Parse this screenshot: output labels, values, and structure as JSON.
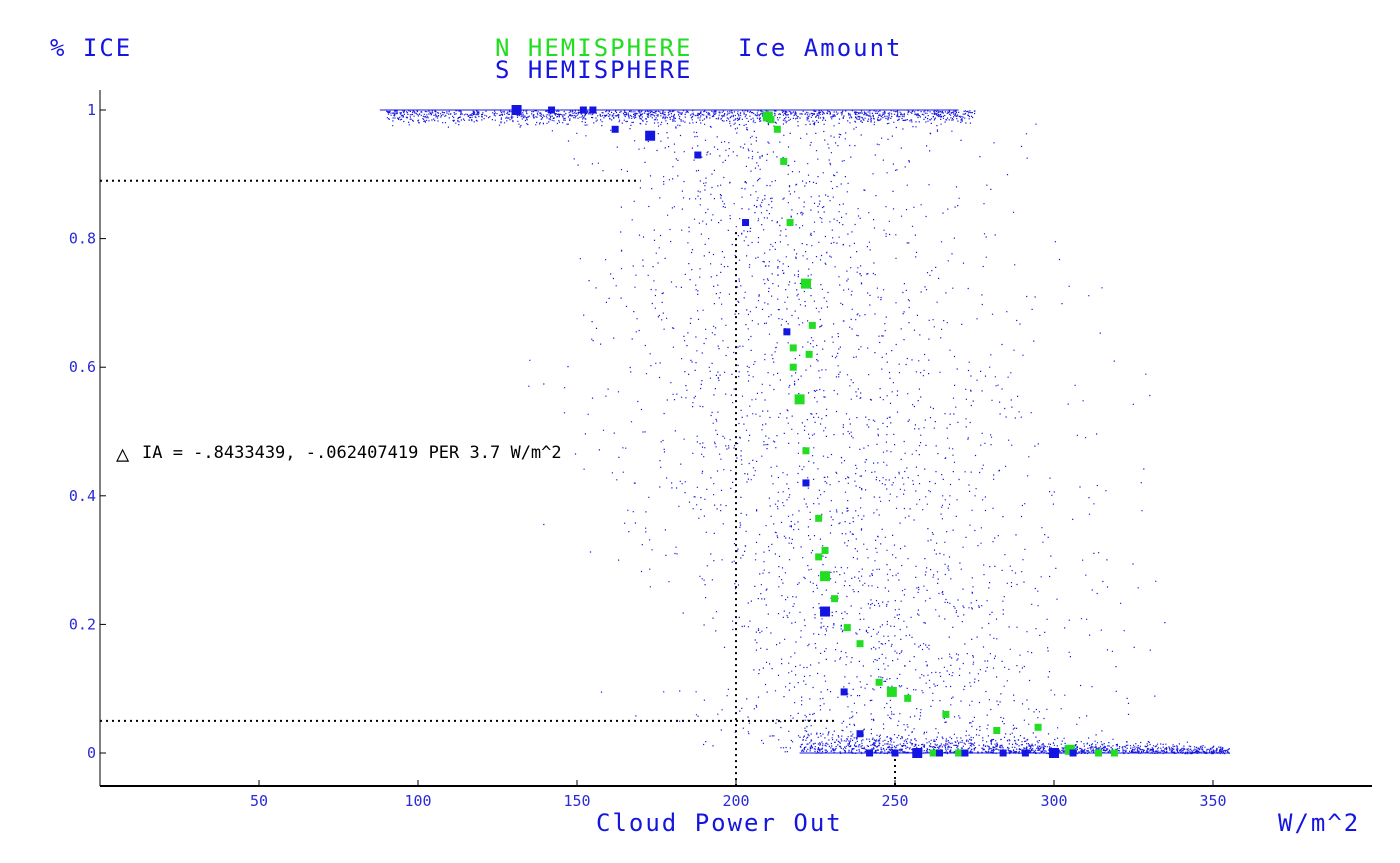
{
  "chart_data": {
    "type": "scatter",
    "title": {
      "series_n": "N HEMISPHERE",
      "series_s": "S HEMISPHERE",
      "suffix": "Ice Amount"
    },
    "ylabel": "% ICE",
    "xlabel": "Cloud Power Out",
    "xunit": "W/m^2",
    "xlim": [
      0,
      400
    ],
    "ylim": [
      -0.05,
      1.05
    ],
    "x_ticks": [
      50,
      100,
      150,
      200,
      250,
      300,
      350
    ],
    "x_tick_labels": [
      "50",
      "100",
      "150",
      "200",
      "250",
      "300",
      "350"
    ],
    "y_ticks": [
      0,
      0.2,
      0.4,
      0.6,
      0.8,
      1
    ],
    "y_tick_labels": [
      "0",
      "0.2",
      "0.4",
      "0.6",
      "0.8",
      "1"
    ],
    "annotation": {
      "symbol": "△",
      "text": "IA = -.8433439, -.062407419 PER 3.7 W/m^2"
    },
    "reference_lines": {
      "h_upper": 0.89,
      "h_lower": 0.05,
      "v_left": 200,
      "v_right": 250
    },
    "colors": {
      "n_hemisphere": "#22dd22",
      "s_hemisphere": "#1515e0",
      "cloud": "#1515e0",
      "axis": "#000000"
    },
    "series": [
      {
        "name": "N HEMISPHERE",
        "points": [
          [
            210,
            0.99
          ],
          [
            211,
            0.985
          ],
          [
            213,
            0.97
          ],
          [
            215,
            0.92
          ],
          [
            217,
            0.825
          ],
          [
            222,
            0.73
          ],
          [
            224,
            0.665
          ],
          [
            223,
            0.62
          ],
          [
            218,
            0.63
          ],
          [
            218,
            0.6
          ],
          [
            220,
            0.55
          ],
          [
            222,
            0.47
          ],
          [
            226,
            0.365
          ],
          [
            228,
            0.315
          ],
          [
            226,
            0.305
          ],
          [
            228,
            0.275
          ],
          [
            231,
            0.24
          ],
          [
            235,
            0.195
          ],
          [
            239,
            0.17
          ],
          [
            245,
            0.11
          ],
          [
            249,
            0.095
          ],
          [
            254,
            0.085
          ],
          [
            266,
            0.06
          ],
          [
            282,
            0.035
          ],
          [
            295,
            0.04
          ],
          [
            305,
            0.005
          ],
          [
            314,
            0.0
          ],
          [
            319,
            0.0
          ],
          [
            270,
            0.0
          ],
          [
            262,
            0.0
          ]
        ]
      },
      {
        "name": "S HEMISPHERE",
        "points": [
          [
            131,
            1.0
          ],
          [
            142,
            1.0
          ],
          [
            152,
            1.0
          ],
          [
            155,
            1.0
          ],
          [
            162,
            0.97
          ],
          [
            173,
            0.96
          ],
          [
            188,
            0.93
          ],
          [
            203,
            0.825
          ],
          [
            216,
            0.655
          ],
          [
            222,
            0.42
          ],
          [
            228,
            0.22
          ],
          [
            234,
            0.095
          ],
          [
            239,
            0.03
          ],
          [
            242,
            0.0
          ],
          [
            250,
            0.0
          ],
          [
            257,
            0.0
          ],
          [
            264,
            0.0
          ],
          [
            272,
            0.0
          ],
          [
            284,
            0.0
          ],
          [
            291,
            0.0
          ],
          [
            300,
            0.0
          ],
          [
            306,
            0.0
          ]
        ]
      }
    ]
  }
}
